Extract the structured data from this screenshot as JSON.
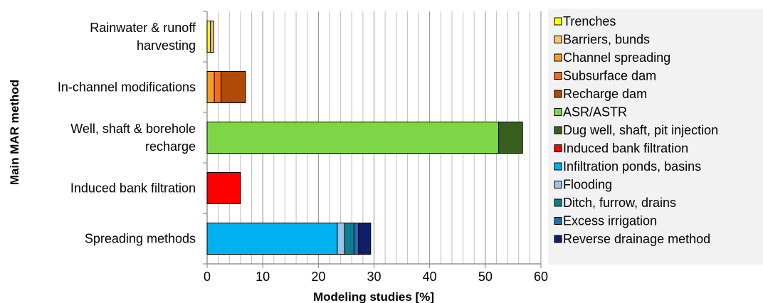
{
  "chart_data": {
    "type": "bar",
    "orientation": "horizontal",
    "stacked": true,
    "xlabel": "Modeling studies [%]",
    "ylabel": "Main MAR method",
    "xlim": [
      0,
      60
    ],
    "xticks": [
      0,
      10,
      20,
      30,
      40,
      50,
      60
    ],
    "minor_gridline_step": 2,
    "grid": true,
    "legend_position": "right",
    "categories": [
      "Rainwater & runoff harvesting",
      "In-channel modifications",
      "Well, shaft & borehole recharge",
      "Induced bank filtration",
      "Spreading methods"
    ],
    "category_label_lines": [
      [
        "Rainwater & runoff",
        "harvesting"
      ],
      [
        "In-channel modifications"
      ],
      [
        "Well, shaft & borehole",
        "recharge"
      ],
      [
        "Induced bank filtration"
      ],
      [
        "Spreading methods"
      ]
    ],
    "series": [
      {
        "name": "Trenches",
        "color": "#FFFF00",
        "values": [
          0.6,
          0,
          0,
          0,
          0
        ]
      },
      {
        "name": "Barriers, bunds",
        "color": "#F7C56B",
        "values": [
          0.6,
          0,
          0,
          0,
          0
        ]
      },
      {
        "name": "Channel spreading",
        "color": "#F7A01F",
        "values": [
          0,
          1.3,
          0,
          0,
          0
        ]
      },
      {
        "name": "Subsurface dam",
        "color": "#F26E16",
        "values": [
          0,
          1.2,
          0,
          0,
          0
        ]
      },
      {
        "name": "Recharge dam",
        "color": "#B14A08",
        "values": [
          0,
          4.4,
          0,
          0,
          0
        ]
      },
      {
        "name": "ASR/ASTR",
        "color": "#7ED647",
        "values": [
          0,
          0,
          52.4,
          0,
          0
        ]
      },
      {
        "name": "Dug well, shaft, pit injection",
        "color": "#385E1E",
        "values": [
          0,
          0,
          4.3,
          0,
          0
        ]
      },
      {
        "name": "Induced bank filtration",
        "color": "#FF0000",
        "values": [
          0,
          0,
          0,
          6.0,
          0
        ]
      },
      {
        "name": "Infiltration ponds, basins",
        "color": "#00B0F0",
        "values": [
          0,
          0,
          0,
          0,
          23.4
        ]
      },
      {
        "name": "Flooding",
        "color": "#9DC3E6",
        "values": [
          0,
          0,
          0,
          0,
          1.3
        ]
      },
      {
        "name": "Ditch, furrow, drains",
        "color": "#0E7C91",
        "values": [
          0,
          0,
          0,
          0,
          1.7
        ]
      },
      {
        "name": "Excess irrigation",
        "color": "#1B6FBA",
        "values": [
          0,
          0,
          0,
          0,
          0.8
        ]
      },
      {
        "name": "Reverse drainage method",
        "color": "#0D1F6B",
        "values": [
          0,
          0,
          0,
          0,
          2.2
        ]
      }
    ]
  }
}
